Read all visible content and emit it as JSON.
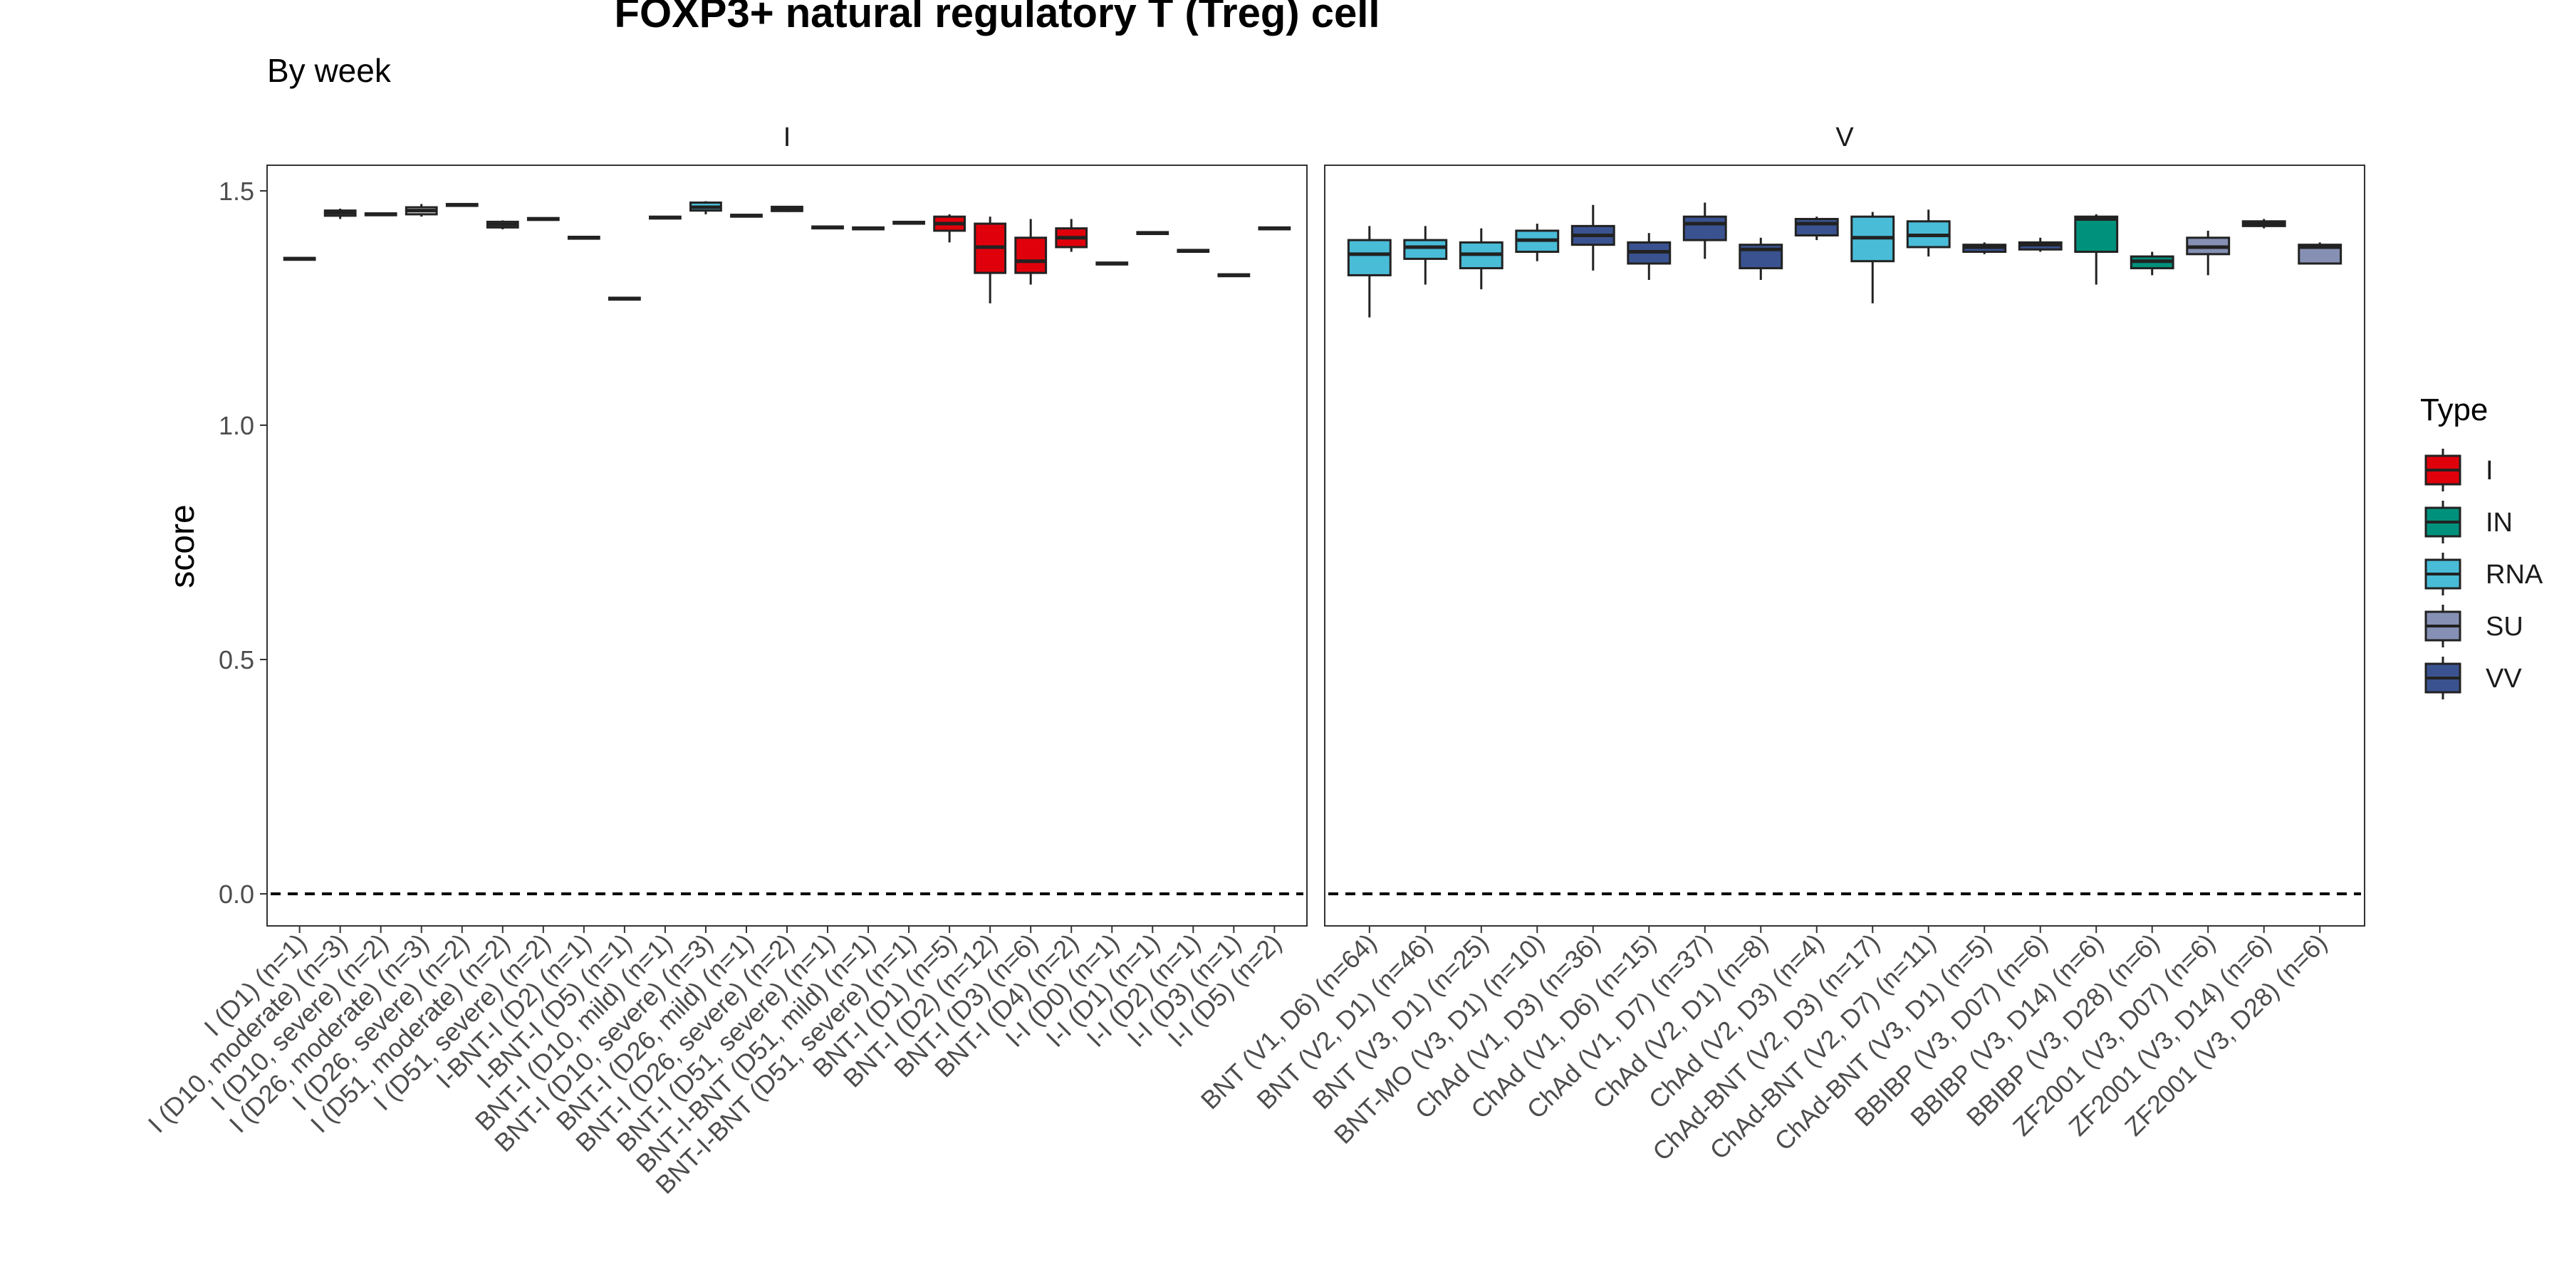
{
  "chart_data": {
    "type": "box",
    "title": "FOXP3+ natural regulatory T (Treg) cell",
    "subtitle": "By week",
    "ylabel": "score",
    "ylim": [
      -0.05,
      1.55
    ],
    "yticks": [
      0.0,
      0.5,
      1.0,
      1.5
    ],
    "yticklabels": [
      "0.0",
      "0.5",
      "1.0",
      "1.5"
    ],
    "reference_line": 0.0,
    "legend": {
      "title": "Type",
      "position": "right",
      "entries": [
        {
          "label": "I",
          "color": "#e0000b"
        },
        {
          "label": "IN",
          "color": "#00917c"
        },
        {
          "label": "RNA",
          "color": "#49bcd8"
        },
        {
          "label": "SU",
          "color": "#8590b4"
        },
        {
          "label": "VV",
          "color": "#3a5390"
        }
      ]
    },
    "panels": [
      {
        "strip": "I",
        "categories": [
          {
            "label": "I (D1) (n=1)",
            "type": "",
            "median": 1.355,
            "q1": 1.353,
            "q3": 1.357,
            "wlo": 1.353,
            "whi": 1.357
          },
          {
            "label": "I (D10, moderate) (n=3)",
            "type": "",
            "median": 1.453,
            "q1": 1.447,
            "q3": 1.458,
            "wlo": 1.44,
            "whi": 1.462
          },
          {
            "label": "I (D10, severe) (n=2)",
            "type": "",
            "median": 1.45,
            "q1": 1.448,
            "q3": 1.452,
            "wlo": 1.447,
            "whi": 1.453
          },
          {
            "label": "I (D26, moderate) (n=3)",
            "type": "",
            "median": 1.458,
            "q1": 1.45,
            "q3": 1.465,
            "wlo": 1.445,
            "whi": 1.472
          },
          {
            "label": "I (D26, severe) (n=2)",
            "type": "",
            "median": 1.47,
            "q1": 1.468,
            "q3": 1.472,
            "wlo": 1.466,
            "whi": 1.474
          },
          {
            "label": "I (D51, moderate) (n=2)",
            "type": "",
            "median": 1.428,
            "q1": 1.422,
            "q3": 1.434,
            "wlo": 1.418,
            "whi": 1.437
          },
          {
            "label": "I (D51, severe) (n=2)",
            "type": "",
            "median": 1.44,
            "q1": 1.438,
            "q3": 1.442,
            "wlo": 1.437,
            "whi": 1.443
          },
          {
            "label": "I-BNT-I (D2) (n=1)",
            "type": "",
            "median": 1.4,
            "q1": 1.398,
            "q3": 1.402,
            "wlo": 1.398,
            "whi": 1.402
          },
          {
            "label": "I-BNT-I (D5) (n=1)",
            "type": "",
            "median": 1.27,
            "q1": 1.268,
            "q3": 1.272,
            "wlo": 1.268,
            "whi": 1.272
          },
          {
            "label": "BNT-I (D10, mild) (n=1)",
            "type": "",
            "median": 1.443,
            "q1": 1.441,
            "q3": 1.445,
            "wlo": 1.441,
            "whi": 1.445
          },
          {
            "label": "BNT-I (D10, severe) (n=3)",
            "type": "RNA",
            "median": 1.465,
            "q1": 1.458,
            "q3": 1.475,
            "wlo": 1.45,
            "whi": 1.478
          },
          {
            "label": "BNT-I (D26, mild) (n=1)",
            "type": "",
            "median": 1.447,
            "q1": 1.445,
            "q3": 1.449,
            "wlo": 1.445,
            "whi": 1.449
          },
          {
            "label": "BNT-I (D26, severe) (n=2)",
            "type": "",
            "median": 1.462,
            "q1": 1.457,
            "q3": 1.466,
            "wlo": 1.455,
            "whi": 1.468
          },
          {
            "label": "BNT-I (D51, severe) (n=1)",
            "type": "",
            "median": 1.422,
            "q1": 1.42,
            "q3": 1.424,
            "wlo": 1.42,
            "whi": 1.424
          },
          {
            "label": "BNT-I-BNT (D51, mild) (n=1)",
            "type": "",
            "median": 1.42,
            "q1": 1.418,
            "q3": 1.422,
            "wlo": 1.418,
            "whi": 1.422
          },
          {
            "label": "BNT-I-BNT (D51, severe) (n=1)",
            "type": "",
            "median": 1.432,
            "q1": 1.43,
            "q3": 1.434,
            "wlo": 1.43,
            "whi": 1.434
          },
          {
            "label": "BNT-I (D1) (n=5)",
            "type": "I",
            "median": 1.43,
            "q1": 1.415,
            "q3": 1.445,
            "wlo": 1.39,
            "whi": 1.45
          },
          {
            "label": "BNT-I (D2) (n=12)",
            "type": "I",
            "median": 1.38,
            "q1": 1.325,
            "q3": 1.43,
            "wlo": 1.26,
            "whi": 1.445
          },
          {
            "label": "BNT-I (D3) (n=6)",
            "type": "I",
            "median": 1.35,
            "q1": 1.325,
            "q3": 1.4,
            "wlo": 1.3,
            "whi": 1.44
          },
          {
            "label": "BNT-I (D4) (n=2)",
            "type": "I",
            "median": 1.4,
            "q1": 1.38,
            "q3": 1.42,
            "wlo": 1.37,
            "whi": 1.44
          },
          {
            "label": "I-I (D0) (n=1)",
            "type": "",
            "median": 1.345,
            "q1": 1.343,
            "q3": 1.347,
            "wlo": 1.343,
            "whi": 1.347
          },
          {
            "label": "I-I (D1) (n=1)",
            "type": "",
            "median": 1.41,
            "q1": 1.408,
            "q3": 1.412,
            "wlo": 1.408,
            "whi": 1.412
          },
          {
            "label": "I-I (D2) (n=1)",
            "type": "",
            "median": 1.372,
            "q1": 1.37,
            "q3": 1.374,
            "wlo": 1.37,
            "whi": 1.374
          },
          {
            "label": "I-I (D3) (n=1)",
            "type": "",
            "median": 1.32,
            "q1": 1.318,
            "q3": 1.322,
            "wlo": 1.318,
            "whi": 1.322
          },
          {
            "label": "I-I (D5) (n=2)",
            "type": "",
            "median": 1.42,
            "q1": 1.418,
            "q3": 1.422,
            "wlo": 1.417,
            "whi": 1.423
          }
        ]
      },
      {
        "strip": "V",
        "categories": [
          {
            "label": "BNT (V1, D6) (n=64)",
            "type": "RNA",
            "median": 1.365,
            "q1": 1.32,
            "q3": 1.395,
            "wlo": 1.23,
            "whi": 1.425
          },
          {
            "label": "BNT (V2, D1) (n=46)",
            "type": "RNA",
            "median": 1.38,
            "q1": 1.355,
            "q3": 1.395,
            "wlo": 1.3,
            "whi": 1.425
          },
          {
            "label": "BNT (V3, D1) (n=25)",
            "type": "RNA",
            "median": 1.365,
            "q1": 1.335,
            "q3": 1.39,
            "wlo": 1.29,
            "whi": 1.42
          },
          {
            "label": "BNT-MO (V3, D1) (n=10)",
            "type": "RNA",
            "median": 1.395,
            "q1": 1.37,
            "q3": 1.415,
            "wlo": 1.35,
            "whi": 1.43
          },
          {
            "label": "ChAd (V1, D3) (n=36)",
            "type": "VV",
            "median": 1.405,
            "q1": 1.385,
            "q3": 1.425,
            "wlo": 1.33,
            "whi": 1.47
          },
          {
            "label": "ChAd (V1, D6) (n=15)",
            "type": "VV",
            "median": 1.37,
            "q1": 1.345,
            "q3": 1.39,
            "wlo": 1.31,
            "whi": 1.41
          },
          {
            "label": "ChAd (V1, D7) (n=37)",
            "type": "VV",
            "median": 1.43,
            "q1": 1.395,
            "q3": 1.445,
            "wlo": 1.355,
            "whi": 1.475
          },
          {
            "label": "ChAd (V2, D1) (n=8)",
            "type": "VV",
            "median": 1.375,
            "q1": 1.335,
            "q3": 1.385,
            "wlo": 1.31,
            "whi": 1.4
          },
          {
            "label": "ChAd (V2, D3) (n=4)",
            "type": "VV",
            "median": 1.43,
            "q1": 1.405,
            "q3": 1.44,
            "wlo": 1.395,
            "whi": 1.445
          },
          {
            "label": "ChAd-BNT (V2, D3) (n=17)",
            "type": "RNA",
            "median": 1.4,
            "q1": 1.35,
            "q3": 1.445,
            "wlo": 1.26,
            "whi": 1.455
          },
          {
            "label": "ChAd-BNT (V2, D7) (n=11)",
            "type": "RNA",
            "median": 1.405,
            "q1": 1.38,
            "q3": 1.435,
            "wlo": 1.36,
            "whi": 1.46
          },
          {
            "label": "ChAd-BNT (V3, D1) (n=5)",
            "type": "VV",
            "median": 1.38,
            "q1": 1.37,
            "q3": 1.385,
            "wlo": 1.365,
            "whi": 1.39
          },
          {
            "label": "BBIBP (V3, D07) (n=6)",
            "type": "VV",
            "median": 1.385,
            "q1": 1.375,
            "q3": 1.39,
            "wlo": 1.37,
            "whi": 1.4
          },
          {
            "label": "BBIBP (V3, D14) (n=6)",
            "type": "IN",
            "median": 1.44,
            "q1": 1.37,
            "q3": 1.445,
            "wlo": 1.3,
            "whi": 1.45
          },
          {
            "label": "BBIBP (V3, D28) (n=6)",
            "type": "IN",
            "median": 1.35,
            "q1": 1.335,
            "q3": 1.36,
            "wlo": 1.32,
            "whi": 1.37
          },
          {
            "label": "ZF2001 (V3, D07) (n=6)",
            "type": "SU",
            "median": 1.38,
            "q1": 1.365,
            "q3": 1.4,
            "wlo": 1.32,
            "whi": 1.415
          },
          {
            "label": "ZF2001 (V3, D14) (n=6)",
            "type": "VV",
            "median": 1.43,
            "q1": 1.425,
            "q3": 1.435,
            "wlo": 1.42,
            "whi": 1.44
          },
          {
            "label": "ZF2001 (V3, D28) (n=6)",
            "type": "SU",
            "median": 1.38,
            "q1": 1.345,
            "q3": 1.385,
            "wlo": 1.345,
            "whi": 1.39
          }
        ]
      }
    ]
  }
}
